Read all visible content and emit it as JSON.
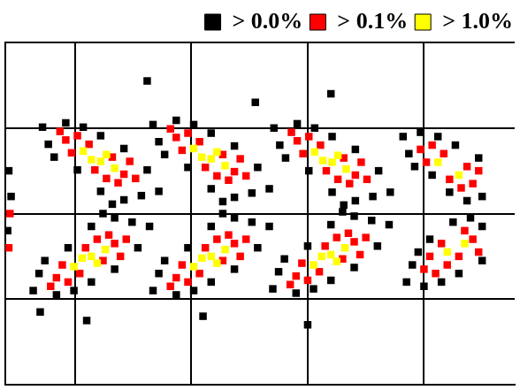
{
  "chart_data": {
    "type": "scatter",
    "xlim": [
      -0.6,
      3.78
    ],
    "xticks": [
      0,
      1,
      2,
      3
    ],
    "ylim": [
      0,
      4
    ],
    "yticks": [
      0,
      1,
      2,
      3,
      4
    ],
    "grid": true,
    "tick_labels": false,
    "legend": "top-right",
    "series": [
      {
        "name": "> 0.0%",
        "color": "#000000",
        "marker": "square",
        "values": [
          [
            -0.28,
            3.01
          ],
          [
            -0.23,
            2.81
          ],
          [
            -0.08,
            3.06
          ],
          [
            0.07,
            3.01
          ],
          [
            0.22,
            2.91
          ],
          [
            0.42,
            2.76
          ],
          [
            0.62,
            2.51
          ],
          [
            0.72,
            2.26
          ],
          [
            0.57,
            2.21
          ],
          [
            0.42,
            2.16
          ],
          [
            0.22,
            2.26
          ],
          [
            0.02,
            2.51
          ],
          [
            -0.18,
            2.66
          ],
          [
            0.32,
            2.11
          ],
          [
            0.67,
            3.04
          ],
          [
            0.72,
            2.84
          ],
          [
            0.87,
            3.09
          ],
          [
            1.02,
            3.04
          ],
          [
            1.17,
            2.94
          ],
          [
            1.37,
            2.79
          ],
          [
            1.57,
            2.54
          ],
          [
            1.67,
            2.29
          ],
          [
            1.52,
            2.24
          ],
          [
            1.37,
            2.19
          ],
          [
            1.17,
            2.29
          ],
          [
            0.97,
            2.54
          ],
          [
            0.77,
            2.69
          ],
          [
            1.27,
            2.14
          ],
          [
            1.71,
            3.0
          ],
          [
            1.76,
            2.8
          ],
          [
            1.91,
            3.05
          ],
          [
            2.06,
            3.0
          ],
          [
            2.21,
            2.9
          ],
          [
            2.41,
            2.75
          ],
          [
            2.61,
            2.5
          ],
          [
            2.71,
            2.25
          ],
          [
            2.56,
            2.2
          ],
          [
            2.41,
            2.15
          ],
          [
            2.21,
            2.25
          ],
          [
            2.01,
            2.5
          ],
          [
            1.81,
            2.65
          ],
          [
            2.31,
            2.1
          ],
          [
            2.82,
            2.9
          ],
          [
            2.87,
            2.7
          ],
          [
            2.97,
            2.95
          ],
          [
            3.12,
            2.9
          ],
          [
            3.27,
            2.8
          ],
          [
            3.47,
            2.65
          ],
          [
            3.5,
            2.2
          ],
          [
            3.37,
            2.15
          ],
          [
            3.22,
            2.25
          ],
          [
            3.07,
            2.45
          ],
          [
            2.92,
            2.55
          ],
          [
            -0.36,
            1.1
          ],
          [
            -0.31,
            1.3
          ],
          [
            -0.16,
            1.05
          ],
          [
            -0.01,
            1.1
          ],
          [
            0.14,
            1.2
          ],
          [
            0.34,
            1.35
          ],
          [
            0.54,
            1.6
          ],
          [
            0.64,
            1.85
          ],
          [
            0.49,
            1.9
          ],
          [
            0.34,
            1.95
          ],
          [
            0.14,
            1.85
          ],
          [
            -0.06,
            1.6
          ],
          [
            -0.26,
            1.45
          ],
          [
            0.24,
            2.0
          ],
          [
            0.67,
            1.1
          ],
          [
            0.72,
            1.3
          ],
          [
            0.87,
            1.05
          ],
          [
            1.02,
            1.1
          ],
          [
            1.17,
            1.2
          ],
          [
            1.37,
            1.35
          ],
          [
            1.57,
            1.6
          ],
          [
            1.67,
            1.85
          ],
          [
            1.52,
            1.9
          ],
          [
            1.37,
            1.95
          ],
          [
            1.17,
            1.85
          ],
          [
            0.97,
            1.6
          ],
          [
            0.77,
            1.45
          ],
          [
            1.27,
            2.0
          ],
          [
            1.7,
            1.12
          ],
          [
            1.75,
            1.32
          ],
          [
            1.9,
            1.07
          ],
          [
            2.05,
            1.12
          ],
          [
            2.2,
            1.22
          ],
          [
            2.4,
            1.37
          ],
          [
            2.6,
            1.62
          ],
          [
            2.7,
            1.87
          ],
          [
            2.55,
            1.92
          ],
          [
            2.4,
            1.97
          ],
          [
            2.2,
            1.87
          ],
          [
            2.0,
            1.62
          ],
          [
            1.8,
            1.47
          ],
          [
            2.3,
            2.02
          ],
          [
            2.85,
            1.2
          ],
          [
            2.9,
            1.4
          ],
          [
            3.0,
            1.15
          ],
          [
            3.15,
            1.2
          ],
          [
            3.3,
            1.3
          ],
          [
            3.5,
            1.45
          ],
          [
            3.5,
            1.85
          ],
          [
            3.4,
            1.95
          ],
          [
            3.25,
            1.9
          ],
          [
            3.05,
            1.7
          ],
          [
            2.95,
            1.55
          ],
          [
            -0.57,
            2.5
          ],
          [
            -0.55,
            2.2
          ],
          [
            -0.58,
            1.8
          ],
          [
            0.62,
            3.55
          ],
          [
            1.55,
            3.3
          ],
          [
            -0.3,
            0.85
          ],
          [
            2.0,
            0.7
          ],
          [
            0.1,
            0.75
          ],
          [
            2.2,
            3.4
          ],
          [
            1.1,
            0.8
          ]
        ]
      },
      {
        "name": "> 0.1%",
        "color": "#ff0000",
        "marker": "square",
        "values": [
          [
            -0.08,
            2.86
          ],
          [
            0.02,
            2.91
          ],
          [
            -0.03,
            2.71
          ],
          [
            0.12,
            2.81
          ],
          [
            0.32,
            2.66
          ],
          [
            0.42,
            2.46
          ],
          [
            0.52,
            2.41
          ],
          [
            0.37,
            2.36
          ],
          [
            0.17,
            2.51
          ],
          [
            0.47,
            2.61
          ],
          [
            -0.13,
            2.96
          ],
          [
            0.27,
            2.41
          ],
          [
            0.87,
            2.89
          ],
          [
            0.97,
            2.94
          ],
          [
            0.92,
            2.74
          ],
          [
            1.07,
            2.84
          ],
          [
            1.27,
            2.69
          ],
          [
            1.37,
            2.49
          ],
          [
            1.47,
            2.44
          ],
          [
            1.32,
            2.39
          ],
          [
            1.12,
            2.54
          ],
          [
            1.42,
            2.64
          ],
          [
            0.82,
            2.99
          ],
          [
            1.22,
            2.44
          ],
          [
            1.91,
            2.85
          ],
          [
            2.01,
            2.9
          ],
          [
            1.96,
            2.7
          ],
          [
            2.11,
            2.8
          ],
          [
            2.31,
            2.65
          ],
          [
            2.41,
            2.45
          ],
          [
            2.51,
            2.4
          ],
          [
            2.36,
            2.35
          ],
          [
            2.16,
            2.5
          ],
          [
            2.46,
            2.6
          ],
          [
            1.86,
            2.95
          ],
          [
            2.26,
            2.4
          ],
          [
            2.97,
            2.75
          ],
          [
            3.07,
            2.8
          ],
          [
            3.02,
            2.6
          ],
          [
            3.17,
            2.7
          ],
          [
            3.37,
            2.55
          ],
          [
            3.42,
            2.35
          ],
          [
            3.32,
            2.3
          ],
          [
            3.22,
            2.4
          ],
          [
            3.47,
            2.5
          ],
          [
            -0.16,
            1.25
          ],
          [
            -0.06,
            1.2
          ],
          [
            -0.11,
            1.4
          ],
          [
            0.04,
            1.3
          ],
          [
            0.24,
            1.45
          ],
          [
            0.34,
            1.65
          ],
          [
            0.44,
            1.7
          ],
          [
            0.29,
            1.75
          ],
          [
            0.09,
            1.6
          ],
          [
            0.39,
            1.5
          ],
          [
            -0.21,
            1.15
          ],
          [
            0.19,
            1.7
          ],
          [
            0.87,
            1.25
          ],
          [
            0.97,
            1.2
          ],
          [
            0.92,
            1.4
          ],
          [
            1.07,
            1.3
          ],
          [
            1.27,
            1.45
          ],
          [
            1.37,
            1.65
          ],
          [
            1.47,
            1.7
          ],
          [
            1.32,
            1.75
          ],
          [
            1.12,
            1.6
          ],
          [
            1.42,
            1.5
          ],
          [
            0.82,
            1.15
          ],
          [
            1.22,
            1.7
          ],
          [
            1.9,
            1.27
          ],
          [
            2.0,
            1.22
          ],
          [
            1.95,
            1.42
          ],
          [
            2.1,
            1.32
          ],
          [
            2.3,
            1.47
          ],
          [
            2.4,
            1.67
          ],
          [
            2.5,
            1.72
          ],
          [
            2.35,
            1.77
          ],
          [
            2.15,
            1.62
          ],
          [
            2.45,
            1.52
          ],
          [
            1.85,
            1.17
          ],
          [
            2.25,
            1.72
          ],
          [
            3.0,
            1.35
          ],
          [
            3.1,
            1.3
          ],
          [
            3.05,
            1.5
          ],
          [
            3.2,
            1.4
          ],
          [
            3.3,
            1.5
          ],
          [
            3.42,
            1.7
          ],
          [
            3.35,
            1.8
          ],
          [
            3.15,
            1.65
          ],
          [
            3.47,
            1.55
          ],
          [
            -0.56,
            2.0
          ],
          [
            -0.57,
            1.6
          ]
        ]
      },
      {
        "name": "> 1.0%",
        "color": "#ffff00",
        "marker": "square",
        "values": [
          [
            0.07,
            2.73
          ],
          [
            0.22,
            2.61
          ],
          [
            0.34,
            2.53
          ],
          [
            0.14,
            2.63
          ],
          [
            0.27,
            2.69
          ],
          [
            1.02,
            2.76
          ],
          [
            1.17,
            2.64
          ],
          [
            1.29,
            2.56
          ],
          [
            1.09,
            2.66
          ],
          [
            1.22,
            2.72
          ],
          [
            2.06,
            2.72
          ],
          [
            2.21,
            2.6
          ],
          [
            2.33,
            2.52
          ],
          [
            2.13,
            2.62
          ],
          [
            2.26,
            2.68
          ],
          [
            3.12,
            2.6
          ],
          [
            3.3,
            2.45
          ],
          [
            -0.01,
            1.38
          ],
          [
            0.14,
            1.5
          ],
          [
            0.26,
            1.58
          ],
          [
            0.06,
            1.48
          ],
          [
            0.19,
            1.42
          ],
          [
            1.02,
            1.38
          ],
          [
            1.17,
            1.5
          ],
          [
            1.29,
            1.58
          ],
          [
            1.09,
            1.48
          ],
          [
            1.22,
            1.42
          ],
          [
            2.05,
            1.4
          ],
          [
            2.2,
            1.52
          ],
          [
            2.32,
            1.6
          ],
          [
            2.12,
            1.5
          ],
          [
            2.25,
            1.44
          ],
          [
            3.2,
            1.55
          ],
          [
            3.35,
            1.65
          ]
        ]
      }
    ]
  }
}
